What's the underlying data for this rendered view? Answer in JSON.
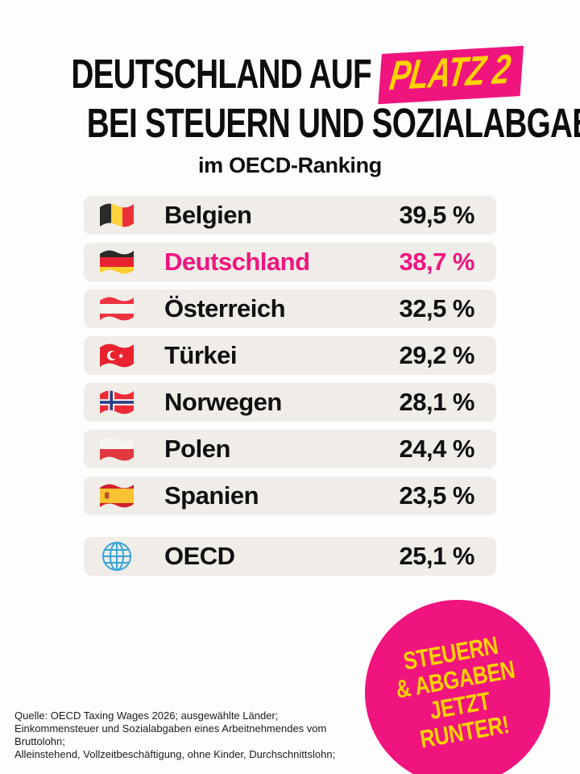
{
  "header": {
    "title_line1_prefix": "DEUTSCHLAND AUF",
    "title_badge": "PLATZ 2",
    "title_line2": "BEI STEUERN UND SOZIALABGABEN",
    "subtitle": "im OECD-Ranking"
  },
  "colors": {
    "accent_pink": "#f0147f",
    "accent_yellow": "#ffd200",
    "row_bg": "#f0ede8",
    "title_color": "#0d0d0d",
    "text_color": "#101010",
    "page_bg": "#fdfdfd"
  },
  "ranking": {
    "rows": [
      {
        "country": "Belgien",
        "value": "39,5 %",
        "flag": "belgium",
        "highlight": false
      },
      {
        "country": "Deutschland",
        "value": "38,7 %",
        "flag": "germany",
        "highlight": true
      },
      {
        "country": "Österreich",
        "value": "32,5 %",
        "flag": "austria",
        "highlight": false
      },
      {
        "country": "Türkei",
        "value": "29,2 %",
        "flag": "turkey",
        "highlight": false
      },
      {
        "country": "Norwegen",
        "value": "28,1 %",
        "flag": "norway",
        "highlight": false
      },
      {
        "country": "Polen",
        "value": "24,4 %",
        "flag": "poland",
        "highlight": false
      },
      {
        "country": "Spanien",
        "value": "23,5 %",
        "flag": "spain",
        "highlight": false
      }
    ],
    "summary_row": {
      "country": "OECD",
      "value": "25,1 %",
      "flag": "globe",
      "highlight": false
    }
  },
  "sticker": {
    "lines": [
      "STEUERN",
      "& ABGABEN",
      "JETZT",
      "RUNTER!"
    ]
  },
  "footer": {
    "source_lines": [
      "Quelle: OECD Taxing Wages 2026; ausgewählte Länder;",
      "Einkommensteuer und Sozialabgaben eines Arbeitnehmendes vom Bruttolohn;",
      "Alleinstehend, Vollzeitbeschäftigung, ohne Kinder, Durchschnittslohn;"
    ]
  },
  "chart_data": {
    "type": "table",
    "title": "Deutschland auf Platz 2 bei Steuern und Sozialabgaben im OECD-Ranking",
    "unit": "%",
    "categories": [
      "Belgien",
      "Deutschland",
      "Österreich",
      "Türkei",
      "Norwegen",
      "Polen",
      "Spanien",
      "OECD"
    ],
    "values": [
      39.5,
      38.7,
      32.5,
      29.2,
      28.1,
      24.4,
      23.5,
      25.1
    ],
    "highlight_category": "Deutschland",
    "highlight_rank_label": "Platz 2",
    "source": "OECD Taxing Wages 2026"
  }
}
